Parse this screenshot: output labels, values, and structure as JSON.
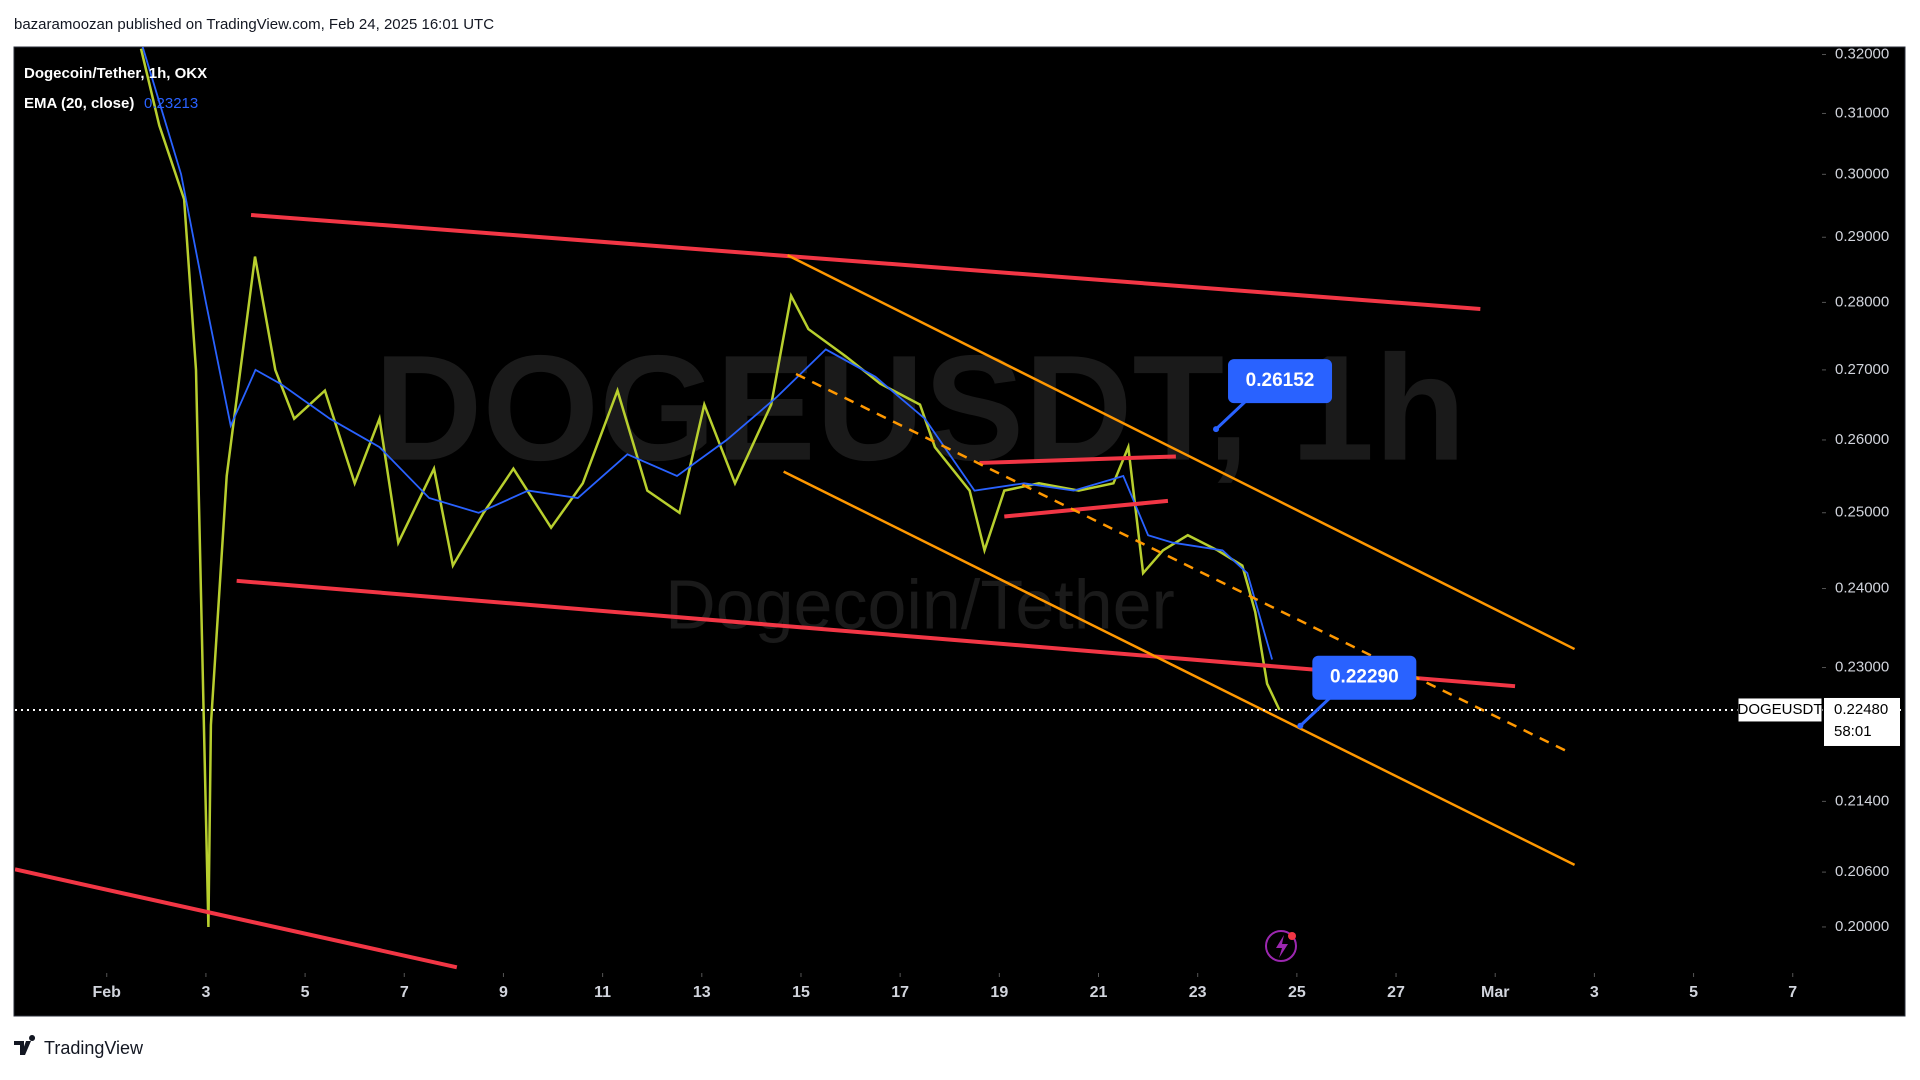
{
  "header": {
    "publisher": "bazaramoozan published on TradingView.com, Feb 24, 2025 16:01 UTC"
  },
  "footer": {
    "brand": "TradingView"
  },
  "chart_data": {
    "type": "line",
    "log_scale": true,
    "watermark": {
      "symbol": "DOGEUSDT, 1h",
      "name": "Dogecoin/Tether"
    },
    "xlim": [
      -0.85,
      35.59
    ],
    "xticks": [
      {
        "value": 1,
        "label": "Feb"
      },
      3,
      5,
      7,
      9,
      11,
      13,
      15,
      17,
      19,
      21,
      23,
      25,
      27,
      {
        "value": 29,
        "label": "Mar"
      },
      {
        "value": 31,
        "label": "3"
      },
      {
        "value": 33,
        "label": "5"
      },
      {
        "value": 35,
        "label": "7"
      }
    ],
    "ylim": [
      0.1951,
      0.3213
    ],
    "yticks": [
      {
        "value": 0.32,
        "label": "0.32000"
      },
      {
        "value": 0.31,
        "label": "0.31000"
      },
      {
        "value": 0.3,
        "label": "0.30000"
      },
      {
        "value": 0.29,
        "label": "0.29000"
      },
      {
        "value": 0.28,
        "label": "0.28000"
      },
      {
        "value": 0.27,
        "label": "0.27000"
      },
      {
        "value": 0.26,
        "label": "0.26000"
      },
      {
        "value": 0.25,
        "label": "0.25000"
      },
      {
        "value": 0.24,
        "label": "0.24000"
      },
      {
        "value": 0.23,
        "label": "0.23000"
      },
      {
        "value": 0.214,
        "label": "0.21400"
      },
      {
        "value": 0.206,
        "label": "0.20600"
      },
      {
        "value": 0.2,
        "label": "0.20000"
      }
    ],
    "series": [
      {
        "name": "Dogecoin/Tether, 1h, OKX",
        "color": "#b8cf2e",
        "x": [
          1.69,
          2.06,
          2.56,
          2.8,
          3.05,
          3.1,
          3.42,
          3.99,
          4.4,
          4.78,
          5.4,
          6.0,
          6.5,
          6.88,
          7.6,
          7.98,
          8.6,
          9.2,
          9.96,
          10.6,
          11.3,
          11.9,
          12.55,
          13.05,
          13.67,
          14.4,
          14.8,
          15.15,
          15.9,
          16.6,
          17.4,
          17.7,
          18.4,
          18.7,
          19.1,
          19.8,
          20.6,
          21.3,
          21.6,
          21.9,
          22.3,
          22.8,
          23.4,
          23.9,
          24.16,
          24.4,
          24.65
        ],
        "values": [
          0.321,
          0.308,
          0.296,
          0.27,
          0.2,
          0.223,
          0.255,
          0.287,
          0.27,
          0.263,
          0.267,
          0.254,
          0.263,
          0.246,
          0.256,
          0.243,
          0.25,
          0.256,
          0.248,
          0.254,
          0.267,
          0.253,
          0.25,
          0.265,
          0.254,
          0.265,
          0.281,
          0.276,
          0.272,
          0.268,
          0.265,
          0.259,
          0.253,
          0.245,
          0.253,
          0.254,
          0.253,
          0.254,
          0.259,
          0.242,
          0.245,
          0.247,
          0.245,
          0.243,
          0.237,
          0.228,
          0.2248
        ]
      },
      {
        "name": "EMA (20, close)",
        "color": "#2962ff",
        "legend_value": 0.23213,
        "x": [
          1.7,
          2.5,
          3.0,
          3.5,
          4.0,
          4.5,
          5.5,
          6.5,
          7.5,
          8.5,
          9.5,
          10.5,
          11.5,
          12.5,
          13.5,
          14.5,
          15.5,
          16.5,
          17.5,
          18.5,
          19.5,
          20.5,
          21.5,
          22.0,
          22.5,
          23.5,
          24.0,
          24.5
        ],
        "values": [
          0.322,
          0.3,
          0.28,
          0.262,
          0.27,
          0.268,
          0.263,
          0.259,
          0.252,
          0.25,
          0.253,
          0.252,
          0.258,
          0.255,
          0.26,
          0.266,
          0.273,
          0.269,
          0.263,
          0.253,
          0.254,
          0.253,
          0.255,
          0.247,
          0.246,
          0.245,
          0.242,
          0.231
        ]
      }
    ],
    "drawings": [
      {
        "color": "#f23645",
        "dashed": false,
        "x": [
          3.91,
          28.7
        ],
        "y": [
          0.2935,
          0.279
        ]
      },
      {
        "color": "#f23645",
        "dashed": false,
        "x": [
          3.62,
          29.4
        ],
        "y": [
          0.241,
          0.2277
        ]
      },
      {
        "color": "#f23645",
        "dashed": false,
        "x": [
          -0.85,
          8.06
        ],
        "y": [
          0.2063,
          0.1957
        ]
      },
      {
        "color": "#f23645",
        "dashed": false,
        "x": [
          18.6,
          22.56
        ],
        "y": [
          0.2568,
          0.2577
        ]
      },
      {
        "color": "#f23645",
        "dashed": false,
        "x": [
          19.1,
          22.4
        ],
        "y": [
          0.2495,
          0.2516
        ]
      },
      {
        "color": "#ff9800",
        "dashed": false,
        "x": [
          14.73,
          30.6
        ],
        "y": [
          0.2872,
          0.2323
        ]
      },
      {
        "color": "#ff9800",
        "dashed": false,
        "x": [
          14.65,
          30.6
        ],
        "y": [
          0.2556,
          0.2068
        ]
      },
      {
        "color": "#ff9800",
        "dashed": true,
        "x": [
          14.9,
          30.5
        ],
        "y": [
          0.2694,
          0.2197
        ]
      }
    ],
    "callouts": [
      {
        "x": 23.37,
        "value": 0.26152
      },
      {
        "x": 25.07,
        "value": {
          "value": 0.2229,
          "label": "0.22290"
        }
      }
    ],
    "last_price": {
      "symbol": "DOGEUSDT",
      "price": {
        "value": 0.2248,
        "label": "0.22480"
      },
      "countdown": "58:01"
    }
  }
}
